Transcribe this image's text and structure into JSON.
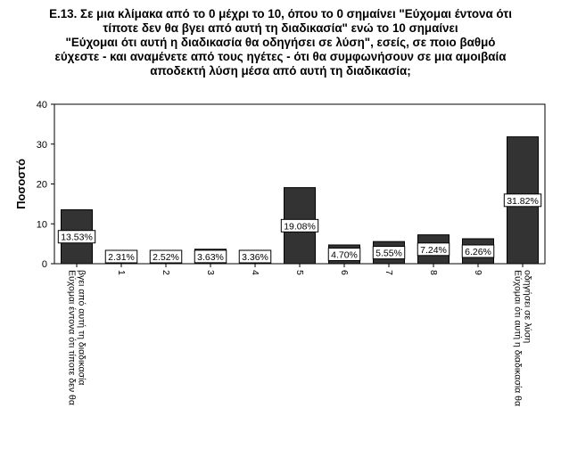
{
  "title_lines": [
    "Ε.13. Σε μια κλίμακα από το 0 μέχρι το 10, όπου το 0 σημαίνει \"Εύχομαι έντονα ότι",
    "τίποτε δεν θα βγει από αυτή τη διαδικασία\" ενώ το 10 σημαίνει",
    "\"Εύχομαι ότι αυτή η διαδικασία θα οδηγήσει σε λύση\", εσείς, σε ποιο βαθμό",
    "εύχεστε - και αναμένετε από τους ηγέτες - ότι θα συμφωνήσουν σε μια αμοιβαία",
    "αποδεκτή λύση μέσα από αυτή τη διαδικασία;"
  ],
  "chart_data": {
    "type": "bar",
    "ylabel": "Ποσοστό",
    "xlabel": "",
    "ylim": [
      0,
      40
    ],
    "yticks": [
      "0",
      "10",
      "20",
      "30",
      "40"
    ],
    "grid": false,
    "bar_color": "#333333",
    "categories": [
      [
        "Εύχομαι έντονα ότι τίποτε δεν θα",
        "βγει από αυτή τη διαδικασία"
      ],
      [
        "1"
      ],
      [
        "2"
      ],
      [
        "3"
      ],
      [
        "4"
      ],
      [
        "5"
      ],
      [
        "6"
      ],
      [
        "7"
      ],
      [
        "8"
      ],
      [
        "9"
      ],
      [
        "Εύχομαι ότι αυτή η διαδικασία θα",
        "οδηγήσει σε λύση"
      ]
    ],
    "values": [
      13.53,
      2.31,
      2.52,
      3.63,
      3.36,
      19.08,
      4.7,
      5.55,
      7.24,
      6.26,
      31.82
    ],
    "data_labels": [
      "13.53%",
      "2.31%",
      "2.52%",
      "3.63%",
      "3.36%",
      "19.08%",
      "4.70%",
      "5.55%",
      "7.24%",
      "6.26%",
      "31.82%"
    ]
  }
}
